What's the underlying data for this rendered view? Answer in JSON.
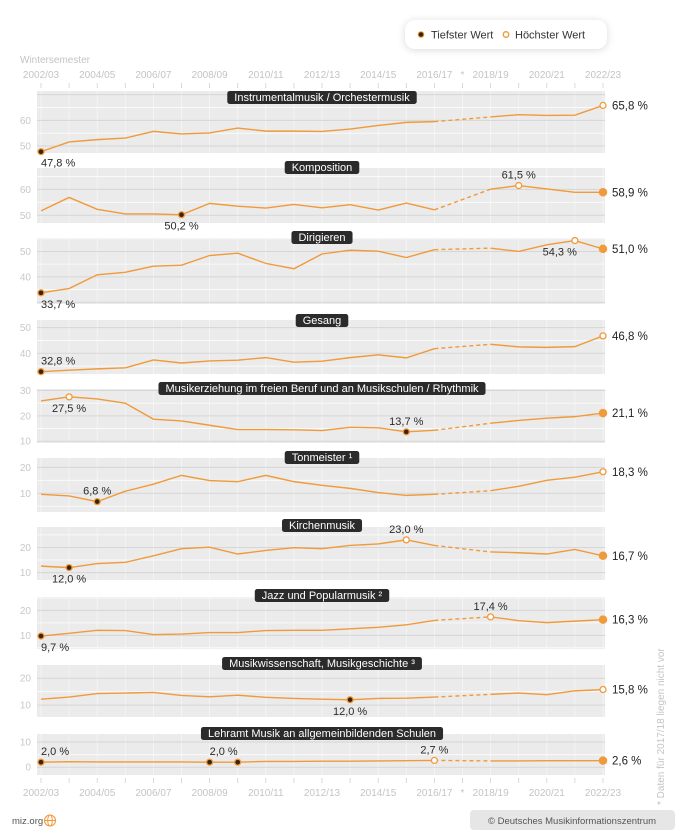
{
  "legend": {
    "min_label": "Tiefster Wert",
    "max_label": "Höchster Wert"
  },
  "axis": {
    "caption": "Wintersemester",
    "tick_labels": [
      "2002/03",
      "2004/05",
      "2006/07",
      "2008/09",
      "2010/11",
      "2012/13",
      "2014/15",
      "2016/17",
      "2018/19",
      "2020/21",
      "2022/23"
    ],
    "gap_marker": "*"
  },
  "footnote": "* Daten für 2017/18 liegen nicht vor",
  "footer": {
    "site": "miz.org",
    "credit": "© Deutsches Musikinformationszentrum"
  },
  "colors": {
    "line": "#f09a3a",
    "min_marker": "#3a2410",
    "panel_bg": "#ebebeb",
    "title_bg": "#2b2b2b"
  },
  "chart_data": {
    "type": "line",
    "unit": "%",
    "x": [
      "2002/03",
      "2003/04",
      "2004/05",
      "2005/06",
      "2006/07",
      "2007/08",
      "2008/09",
      "2009/10",
      "2010/11",
      "2011/12",
      "2012/13",
      "2013/14",
      "2014/15",
      "2015/16",
      "2016/17",
      "2017/18",
      "2018/19",
      "2019/20",
      "2020/21",
      "2021/22",
      "2022/23"
    ],
    "missing_note": "2017/18",
    "grid": true,
    "panels": [
      {
        "title": "Instrumentalmusik / Orchestermusik",
        "ylim": [
          47.3,
          71.4
        ],
        "yticks": [
          50,
          60
        ],
        "values": [
          47.8,
          51.6,
          52.5,
          53.1,
          55.7,
          54.7,
          55.1,
          57.0,
          55.8,
          55.8,
          55.7,
          56.6,
          58.0,
          59.2,
          59.5,
          null,
          61.3,
          62.2,
          61.9,
          62.0,
          65.8
        ],
        "annotations": [
          {
            "index": 0,
            "type": "min",
            "label": "47,8 %",
            "position": "below"
          },
          {
            "index": 20,
            "type": "max",
            "label": "65,8 %",
            "position": "right"
          }
        ]
      },
      {
        "title": "Komposition",
        "ylim": [
          47,
          68.3
        ],
        "yticks": [
          50,
          60
        ],
        "values": [
          51.7,
          56.9,
          52.3,
          50.5,
          50.5,
          50.2,
          54.6,
          53.5,
          52.8,
          54.2,
          52.9,
          54.1,
          52.0,
          54.7,
          52.1,
          null,
          60.1,
          61.5,
          60.2,
          58.9,
          58.9
        ],
        "annotations": [
          {
            "index": 5,
            "type": "min",
            "label": "50,2 %",
            "position": "below"
          },
          {
            "index": 17,
            "type": "max",
            "label": "61,5 %",
            "position": "above"
          },
          {
            "index": 20,
            "type": "last",
            "label": "58,9 %",
            "position": "right"
          }
        ]
      },
      {
        "title": "Dirigieren",
        "ylim": [
          29.3,
          55.3
        ],
        "yticks": [
          40,
          50
        ],
        "values": [
          33.7,
          35.4,
          40.8,
          41.8,
          44.2,
          44.6,
          48.4,
          49.3,
          45.3,
          43.2,
          49.0,
          50.5,
          50.1,
          47.6,
          50.7,
          null,
          51.3,
          50.0,
          52.6,
          54.3,
          51.0
        ],
        "annotations": [
          {
            "index": 0,
            "type": "min",
            "label": "33,7 %",
            "position": "below"
          },
          {
            "index": 19,
            "type": "max",
            "label": "54,3 %",
            "position": "below"
          },
          {
            "index": 20,
            "type": "last",
            "label": "51,0 %",
            "position": "right"
          }
        ]
      },
      {
        "title": "Gesang",
        "ylim": [
          31.9,
          53
        ],
        "yticks": [
          40,
          50
        ],
        "values": [
          32.8,
          33.4,
          33.9,
          34.3,
          37.4,
          36.2,
          37.0,
          37.3,
          38.3,
          36.5,
          36.9,
          38.3,
          39.4,
          38.2,
          41.8,
          null,
          43.5,
          42.5,
          42.3,
          42.6,
          46.8
        ],
        "annotations": [
          {
            "index": 0,
            "type": "min",
            "label": "32,8 %",
            "position": "above"
          },
          {
            "index": 20,
            "type": "max",
            "label": "46,8 %",
            "position": "right"
          }
        ]
      },
      {
        "title": "Musikerziehung im freien Beruf und an Musikschulen / Rhythmik",
        "ylim": [
          9.3,
          30.6
        ],
        "yticks": [
          10,
          20,
          30
        ],
        "values": [
          25.9,
          27.5,
          26.7,
          25.0,
          18.7,
          18.0,
          16.3,
          14.6,
          14.6,
          14.5,
          14.2,
          15.5,
          15.3,
          13.7,
          14.3,
          null,
          17.1,
          18.2,
          19.1,
          19.7,
          21.1
        ],
        "annotations": [
          {
            "index": 1,
            "type": "max",
            "label": "27,5 %",
            "position": "below"
          },
          {
            "index": 13,
            "type": "min",
            "label": "13,7 %",
            "position": "above"
          },
          {
            "index": 20,
            "type": "last",
            "label": "21,1 %",
            "position": "right"
          }
        ]
      },
      {
        "title": "Tonmeister ¹",
        "ylim": [
          2.8,
          23.6
        ],
        "yticks": [
          10,
          20
        ],
        "values": [
          9.6,
          9.0,
          6.8,
          10.8,
          13.5,
          16.9,
          14.9,
          14.5,
          16.9,
          14.5,
          13.1,
          11.9,
          10.3,
          9.2,
          9.6,
          null,
          11.0,
          12.7,
          15.0,
          16.2,
          18.3
        ],
        "annotations": [
          {
            "index": 2,
            "type": "min",
            "label": "6,8 %",
            "position": "above"
          },
          {
            "index": 20,
            "type": "max",
            "label": "18,3 %",
            "position": "right"
          }
        ]
      },
      {
        "title": "Kirchenmusik",
        "ylim": [
          7.1,
          28.1
        ],
        "yticks": [
          10,
          20
        ],
        "values": [
          12.6,
          12.0,
          13.6,
          14.1,
          16.7,
          19.5,
          20.1,
          17.4,
          18.8,
          19.9,
          19.5,
          20.8,
          21.4,
          23.0,
          20.8,
          null,
          18.2,
          17.9,
          17.4,
          19.2,
          16.7
        ],
        "annotations": [
          {
            "index": 1,
            "type": "min",
            "label": "12,0 %",
            "position": "below"
          },
          {
            "index": 13,
            "type": "max",
            "label": "23,0 %",
            "position": "above"
          },
          {
            "index": 20,
            "type": "last",
            "label": "16,7 %",
            "position": "right"
          }
        ]
      },
      {
        "title": "Jazz und Popularmusik ²",
        "ylim": [
          4.5,
          25.4
        ],
        "yticks": [
          10,
          20
        ],
        "values": [
          9.7,
          10.8,
          12.0,
          11.9,
          10.3,
          10.5,
          11.1,
          11.1,
          11.9,
          12.0,
          12.0,
          12.6,
          13.2,
          14.2,
          16.0,
          null,
          17.4,
          15.9,
          15.1,
          15.7,
          16.3
        ],
        "annotations": [
          {
            "index": 0,
            "type": "min",
            "label": "9,7 %",
            "position": "below"
          },
          {
            "index": 16,
            "type": "max",
            "label": "17,4 %",
            "position": "above"
          },
          {
            "index": 20,
            "type": "last",
            "label": "16,3 %",
            "position": "right"
          }
        ]
      },
      {
        "title": "Musikwissenschaft, Musikgeschichte ³",
        "ylim": [
          5.6,
          24.9
        ],
        "yticks": [
          10,
          20
        ],
        "values": [
          12.2,
          13.0,
          14.3,
          14.5,
          14.7,
          13.6,
          13.1,
          13.7,
          12.9,
          12.5,
          12.2,
          12.0,
          12.5,
          12.6,
          13.0,
          null,
          14.0,
          14.5,
          13.9,
          15.3,
          15.8
        ],
        "annotations": [
          {
            "index": 11,
            "type": "min",
            "label": "12,0 %",
            "position": "below"
          },
          {
            "index": 20,
            "type": "max",
            "label": "15,8 %",
            "position": "right"
          }
        ]
      },
      {
        "title": "Lehramt Musik an allgemeinbildenden Schulen",
        "ylim": [
          -3.1,
          13.2
        ],
        "yticks": [
          0,
          10
        ],
        "values": [
          2.0,
          2.2,
          2.1,
          2.1,
          2.1,
          2.1,
          2.0,
          2.0,
          2.3,
          2.3,
          2.4,
          2.4,
          2.5,
          2.6,
          2.7,
          null,
          2.5,
          2.5,
          2.6,
          2.6,
          2.6
        ],
        "annotations": [
          {
            "index": 0,
            "type": "min",
            "label": "2,0 %",
            "position": "above"
          },
          {
            "index": 6,
            "type": "min",
            "label": "2,0 %",
            "position": "above"
          },
          {
            "index": 7,
            "type": "min",
            "label": "",
            "position": "above"
          },
          {
            "index": 14,
            "type": "max",
            "label": "2,7 %",
            "position": "above"
          },
          {
            "index": 20,
            "type": "last",
            "label": "2,6 %",
            "position": "right"
          }
        ]
      }
    ]
  }
}
